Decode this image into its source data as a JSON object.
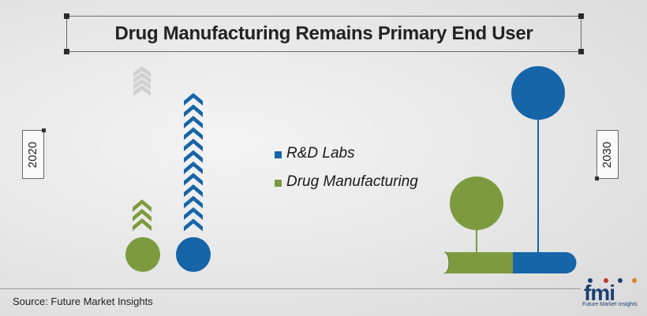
{
  "title": "Drug Manufacturing Remains Primary End User",
  "source": "Source: Future Market Insights",
  "logo": {
    "word": "fmi",
    "tagline": "Future Market Insights"
  },
  "colors": {
    "rd_labs": "#1565a8",
    "drug_manufacturing": "#7d9b3e",
    "faded": "#d0d0d0"
  },
  "chart_data": {
    "type": "bar",
    "years": [
      "2020",
      "2030"
    ],
    "series": [
      {
        "name": "R&D Labs",
        "color": "#1565a8"
      },
      {
        "name": "Drug Manufacturing",
        "color": "#7d9b3e"
      }
    ],
    "legend_position": "center",
    "grid": false
  }
}
